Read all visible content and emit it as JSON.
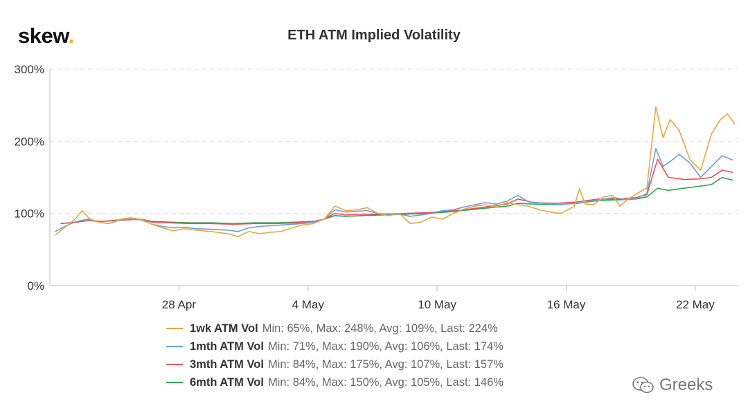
{
  "logo": {
    "text": "skew",
    "dot": "."
  },
  "watermark": {
    "text": "Greeks",
    "icon": "wechat-icon"
  },
  "colors": {
    "1wk": "#e8a93a",
    "1mth": "#6f9be0",
    "3mth": "#e9505a",
    "6mth": "#2ea44f"
  },
  "chart_data": {
    "type": "line",
    "title": "ETH ATM Implied Volatility",
    "xlabel": "",
    "ylabel": "",
    "x_range": [
      "2020-04-22",
      "2020-05-23"
    ],
    "ylim": [
      0,
      300
    ],
    "y_ticks": [
      "0%",
      "100%",
      "200%",
      "300%"
    ],
    "x_ticks": [
      {
        "date": "2020-04-28",
        "label": "28 Apr"
      },
      {
        "date": "2020-05-04",
        "label": "4 May"
      },
      {
        "date": "2020-05-10",
        "label": "10 May"
      },
      {
        "date": "2020-05-16",
        "label": "16 May"
      },
      {
        "date": "2020-05-22",
        "label": "22 May"
      }
    ],
    "grid": "horizontal-dashed",
    "legend_position": "bottom",
    "series": [
      {
        "name": "1wk ATM Vol",
        "stats": "Min: 65%, Max: 248%, Avg: 109%, Last: 224%",
        "color": "#e8a93a",
        "points": [
          [
            "2020-04-22",
            70
          ],
          [
            "2020-04-22",
            82
          ],
          [
            "2020-04-23",
            92
          ],
          [
            "2020-04-23",
            104
          ],
          [
            "2020-04-23",
            93
          ],
          [
            "2020-04-24",
            88
          ],
          [
            "2020-04-24",
            86
          ],
          [
            "2020-04-25",
            92
          ],
          [
            "2020-04-25",
            94
          ],
          [
            "2020-04-26",
            92
          ],
          [
            "2020-04-26",
            85
          ],
          [
            "2020-04-27",
            80
          ],
          [
            "2020-04-27",
            76
          ],
          [
            "2020-04-28",
            79
          ],
          [
            "2020-04-28",
            77
          ],
          [
            "2020-04-29",
            75
          ],
          [
            "2020-04-30",
            72
          ],
          [
            "2020-04-30",
            68
          ],
          [
            "2020-05-01",
            75
          ],
          [
            "2020-05-01",
            72
          ],
          [
            "2020-05-02",
            74
          ],
          [
            "2020-05-02",
            75
          ],
          [
            "2020-05-03",
            80
          ],
          [
            "2020-05-03",
            84
          ],
          [
            "2020-05-04",
            86
          ],
          [
            "2020-05-04",
            92
          ],
          [
            "2020-05-05",
            110
          ],
          [
            "2020-05-05",
            104
          ],
          [
            "2020-05-06",
            105
          ],
          [
            "2020-05-06",
            108
          ],
          [
            "2020-05-07",
            100
          ],
          [
            "2020-05-07",
            97
          ],
          [
            "2020-05-08",
            100
          ],
          [
            "2020-05-08",
            86
          ],
          [
            "2020-05-09",
            88
          ],
          [
            "2020-05-09",
            95
          ],
          [
            "2020-05-10",
            92
          ],
          [
            "2020-05-10",
            100
          ],
          [
            "2020-05-11",
            106
          ],
          [
            "2020-05-11",
            110
          ],
          [
            "2020-05-12",
            112
          ],
          [
            "2020-05-12",
            109
          ],
          [
            "2020-05-13",
            115
          ],
          [
            "2020-05-13",
            112
          ],
          [
            "2020-05-14",
            110
          ],
          [
            "2020-05-14",
            105
          ],
          [
            "2020-05-15",
            102
          ],
          [
            "2020-05-15",
            100
          ],
          [
            "2020-05-16",
            106
          ],
          [
            "2020-05-16",
            110
          ],
          [
            "2020-05-16",
            134
          ],
          [
            "2020-05-16",
            113
          ],
          [
            "2020-05-17",
            112
          ],
          [
            "2020-05-17",
            123
          ],
          [
            "2020-05-18",
            125
          ],
          [
            "2020-05-18",
            110
          ],
          [
            "2020-05-18",
            119
          ],
          [
            "2020-05-19",
            127
          ],
          [
            "2020-05-19",
            135
          ],
          [
            "2020-05-20",
            248
          ],
          [
            "2020-05-20",
            205
          ],
          [
            "2020-05-20",
            230
          ],
          [
            "2020-05-21",
            215
          ],
          [
            "2020-05-21",
            175
          ],
          [
            "2020-05-22",
            160
          ],
          [
            "2020-05-22",
            210
          ],
          [
            "2020-05-23",
            230
          ],
          [
            "2020-05-23",
            238
          ],
          [
            "2020-05-23",
            224
          ]
        ]
      },
      {
        "name": "1mth ATM Vol",
        "stats": "Min: 71%, Max: 190%, Avg: 106%, Last: 174%",
        "color": "#6f9be0",
        "points": [
          [
            "2020-04-22",
            75
          ],
          [
            "2020-04-22",
            83
          ],
          [
            "2020-04-23",
            89
          ],
          [
            "2020-04-23",
            92
          ],
          [
            "2020-04-24",
            88
          ],
          [
            "2020-04-24",
            86
          ],
          [
            "2020-04-25",
            91
          ],
          [
            "2020-04-25",
            92
          ],
          [
            "2020-04-26",
            91
          ],
          [
            "2020-04-26",
            85
          ],
          [
            "2020-04-27",
            82
          ],
          [
            "2020-04-27",
            80
          ],
          [
            "2020-04-28",
            81
          ],
          [
            "2020-04-28",
            79
          ],
          [
            "2020-04-29",
            78
          ],
          [
            "2020-04-30",
            77
          ],
          [
            "2020-04-30",
            75
          ],
          [
            "2020-05-01",
            80
          ],
          [
            "2020-05-01",
            82
          ],
          [
            "2020-05-02",
            83
          ],
          [
            "2020-05-02",
            84
          ],
          [
            "2020-05-03",
            85
          ],
          [
            "2020-05-03",
            86
          ],
          [
            "2020-05-04",
            88
          ],
          [
            "2020-05-04",
            92
          ],
          [
            "2020-05-05",
            105
          ],
          [
            "2020-05-05",
            102
          ],
          [
            "2020-05-06",
            103
          ],
          [
            "2020-05-06",
            104
          ],
          [
            "2020-05-07",
            100
          ],
          [
            "2020-05-07",
            99
          ],
          [
            "2020-05-08",
            99
          ],
          [
            "2020-05-08",
            96
          ],
          [
            "2020-05-09",
            98
          ],
          [
            "2020-05-09",
            100
          ],
          [
            "2020-05-10",
            104
          ],
          [
            "2020-05-10",
            105
          ],
          [
            "2020-05-11",
            109
          ],
          [
            "2020-05-11",
            112
          ],
          [
            "2020-05-12",
            115
          ],
          [
            "2020-05-12",
            113
          ],
          [
            "2020-05-13",
            117
          ],
          [
            "2020-05-13",
            125
          ],
          [
            "2020-05-14",
            116
          ],
          [
            "2020-05-14",
            115
          ],
          [
            "2020-05-15",
            113
          ],
          [
            "2020-05-15",
            112
          ],
          [
            "2020-05-16",
            114
          ],
          [
            "2020-05-16",
            115
          ],
          [
            "2020-05-17",
            118
          ],
          [
            "2020-05-17",
            120
          ],
          [
            "2020-05-18",
            122
          ],
          [
            "2020-05-18",
            119
          ],
          [
            "2020-05-19",
            120
          ],
          [
            "2020-05-19",
            128
          ],
          [
            "2020-05-20",
            190
          ],
          [
            "2020-05-20",
            165
          ],
          [
            "2020-05-20",
            172
          ],
          [
            "2020-05-21",
            182
          ],
          [
            "2020-05-21",
            170
          ],
          [
            "2020-05-22",
            150
          ],
          [
            "2020-05-22",
            165
          ],
          [
            "2020-05-23",
            180
          ],
          [
            "2020-05-23",
            174
          ]
        ]
      },
      {
        "name": "3mth ATM Vol",
        "stats": "Min: 84%, Max: 175%, Avg: 107%, Last: 157%",
        "color": "#e9505a",
        "points": [
          [
            "2020-04-22",
            86
          ],
          [
            "2020-04-23",
            88
          ],
          [
            "2020-04-23",
            90
          ],
          [
            "2020-04-24",
            89
          ],
          [
            "2020-04-25",
            91
          ],
          [
            "2020-04-26",
            92
          ],
          [
            "2020-04-26",
            88
          ],
          [
            "2020-04-27",
            87
          ],
          [
            "2020-04-28",
            86
          ],
          [
            "2020-04-29",
            86
          ],
          [
            "2020-04-30",
            85
          ],
          [
            "2020-05-01",
            86
          ],
          [
            "2020-05-02",
            86
          ],
          [
            "2020-05-03",
            87
          ],
          [
            "2020-05-04",
            89
          ],
          [
            "2020-05-04",
            92
          ],
          [
            "2020-05-05",
            100
          ],
          [
            "2020-05-05",
            98
          ],
          [
            "2020-05-06",
            99
          ],
          [
            "2020-05-07",
            99
          ],
          [
            "2020-05-08",
            100
          ],
          [
            "2020-05-09",
            101
          ],
          [
            "2020-05-10",
            103
          ],
          [
            "2020-05-11",
            106
          ],
          [
            "2020-05-12",
            110
          ],
          [
            "2020-05-13",
            113
          ],
          [
            "2020-05-13",
            120
          ],
          [
            "2020-05-14",
            115
          ],
          [
            "2020-05-15",
            114
          ],
          [
            "2020-05-16",
            116
          ],
          [
            "2020-05-17",
            120
          ],
          [
            "2020-05-18",
            120
          ],
          [
            "2020-05-19",
            122
          ],
          [
            "2020-05-19",
            126
          ],
          [
            "2020-05-20",
            175
          ],
          [
            "2020-05-20",
            150
          ],
          [
            "2020-05-21",
            147
          ],
          [
            "2020-05-22",
            148
          ],
          [
            "2020-05-22",
            150
          ],
          [
            "2020-05-23",
            160
          ],
          [
            "2020-05-23",
            157
          ]
        ]
      },
      {
        "name": "6mth ATM Vol",
        "stats": "Min: 84%, Max: 150%, Avg: 105%, Last: 146%",
        "color": "#2ea44f",
        "points": [
          [
            "2020-04-22",
            86
          ],
          [
            "2020-04-23",
            88
          ],
          [
            "2020-04-23",
            90
          ],
          [
            "2020-04-24",
            89
          ],
          [
            "2020-04-25",
            92
          ],
          [
            "2020-04-26",
            92
          ],
          [
            "2020-04-26",
            89
          ],
          [
            "2020-04-27",
            88
          ],
          [
            "2020-04-28",
            87
          ],
          [
            "2020-04-29",
            87
          ],
          [
            "2020-04-30",
            86
          ],
          [
            "2020-05-01",
            87
          ],
          [
            "2020-05-02",
            87
          ],
          [
            "2020-05-03",
            88
          ],
          [
            "2020-05-04",
            89
          ],
          [
            "2020-05-04",
            92
          ],
          [
            "2020-05-05",
            97
          ],
          [
            "2020-05-05",
            96
          ],
          [
            "2020-05-06",
            97
          ],
          [
            "2020-05-07",
            98
          ],
          [
            "2020-05-08",
            99
          ],
          [
            "2020-05-09",
            100
          ],
          [
            "2020-05-10",
            102
          ],
          [
            "2020-05-11",
            105
          ],
          [
            "2020-05-12",
            108
          ],
          [
            "2020-05-13",
            110
          ],
          [
            "2020-05-13",
            114
          ],
          [
            "2020-05-14",
            113
          ],
          [
            "2020-05-15",
            112
          ],
          [
            "2020-05-16",
            114
          ],
          [
            "2020-05-17",
            118
          ],
          [
            "2020-05-18",
            119
          ],
          [
            "2020-05-19",
            120
          ],
          [
            "2020-05-19",
            123
          ],
          [
            "2020-05-20",
            135
          ],
          [
            "2020-05-20",
            132
          ],
          [
            "2020-05-21",
            135
          ],
          [
            "2020-05-22",
            138
          ],
          [
            "2020-05-22",
            140
          ],
          [
            "2020-05-23",
            150
          ],
          [
            "2020-05-23",
            146
          ]
        ]
      }
    ]
  }
}
